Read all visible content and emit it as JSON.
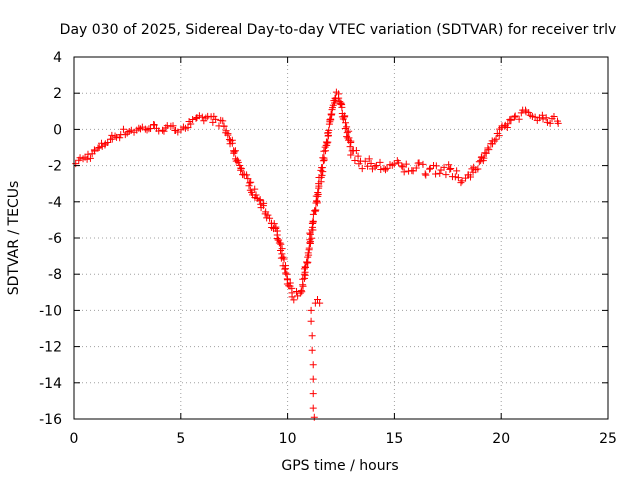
{
  "chart_data": {
    "type": "scatter",
    "title": "Day 030 of 2025, Sidereal Day-to-day VTEC variation (SDTVAR) for receiver trlv",
    "xlabel": "GPS time / hours",
    "ylabel": "SDTVAR / TECUs",
    "xlim": [
      0,
      25
    ],
    "ylim": [
      -16,
      4
    ],
    "xticks": [
      0,
      5,
      10,
      15,
      20,
      25
    ],
    "yticks": [
      -16,
      -14,
      -12,
      -10,
      -8,
      -6,
      -4,
      -2,
      0,
      2,
      4
    ],
    "grid": true,
    "marker": "+",
    "color": "#ff0000",
    "series": [
      {
        "name": "SDTVAR",
        "trace": [
          [
            0.0,
            -1.8
          ],
          [
            0.5,
            -1.6
          ],
          [
            1.0,
            -1.2
          ],
          [
            1.5,
            -0.7
          ],
          [
            2.0,
            -0.3
          ],
          [
            2.5,
            -0.1
          ],
          [
            3.0,
            0.0
          ],
          [
            3.5,
            0.1
          ],
          [
            4.0,
            0.1
          ],
          [
            4.5,
            0.0
          ],
          [
            5.0,
            0.1
          ],
          [
            5.5,
            0.3
          ],
          [
            6.0,
            0.6
          ],
          [
            6.5,
            0.6
          ],
          [
            7.0,
            0.2
          ],
          [
            7.3,
            -0.6
          ],
          [
            7.6,
            -1.6
          ],
          [
            8.0,
            -2.6
          ],
          [
            8.5,
            -3.6
          ],
          [
            9.0,
            -4.6
          ],
          [
            9.4,
            -5.4
          ],
          [
            9.7,
            -6.8
          ],
          [
            10.0,
            -8.4
          ],
          [
            10.3,
            -9.2
          ],
          [
            10.6,
            -9.0
          ],
          [
            10.8,
            -8.0
          ],
          [
            11.0,
            -6.4
          ],
          [
            11.3,
            -4.4
          ],
          [
            11.6,
            -2.2
          ],
          [
            11.9,
            -0.2
          ],
          [
            12.1,
            1.2
          ],
          [
            12.3,
            2.0
          ],
          [
            12.5,
            1.6
          ],
          [
            12.7,
            0.2
          ],
          [
            13.0,
            -1.2
          ],
          [
            13.4,
            -1.8
          ],
          [
            14.0,
            -2.0
          ],
          [
            14.5,
            -2.1
          ],
          [
            15.0,
            -2.0
          ],
          [
            15.5,
            -2.2
          ],
          [
            16.0,
            -2.0
          ],
          [
            16.5,
            -2.2
          ],
          [
            17.0,
            -2.1
          ],
          [
            17.5,
            -2.3
          ],
          [
            18.0,
            -2.7
          ],
          [
            18.5,
            -2.5
          ],
          [
            19.0,
            -1.8
          ],
          [
            19.5,
            -0.9
          ],
          [
            20.0,
            -0.1
          ],
          [
            20.5,
            0.6
          ],
          [
            21.0,
            0.9
          ],
          [
            21.5,
            0.8
          ],
          [
            22.0,
            0.6
          ],
          [
            22.5,
            0.5
          ],
          [
            22.8,
            0.3
          ]
        ],
        "outliers": [
          [
            11.1,
            -10.0
          ],
          [
            11.1,
            -10.6
          ],
          [
            11.15,
            -11.4
          ],
          [
            11.15,
            -12.2
          ],
          [
            11.2,
            -13.0
          ],
          [
            11.2,
            -13.8
          ],
          [
            11.2,
            -14.6
          ],
          [
            11.2,
            -15.4
          ],
          [
            11.25,
            -15.9
          ],
          [
            11.3,
            -9.6
          ],
          [
            11.4,
            -9.4
          ],
          [
            11.5,
            -9.6
          ]
        ]
      }
    ]
  }
}
